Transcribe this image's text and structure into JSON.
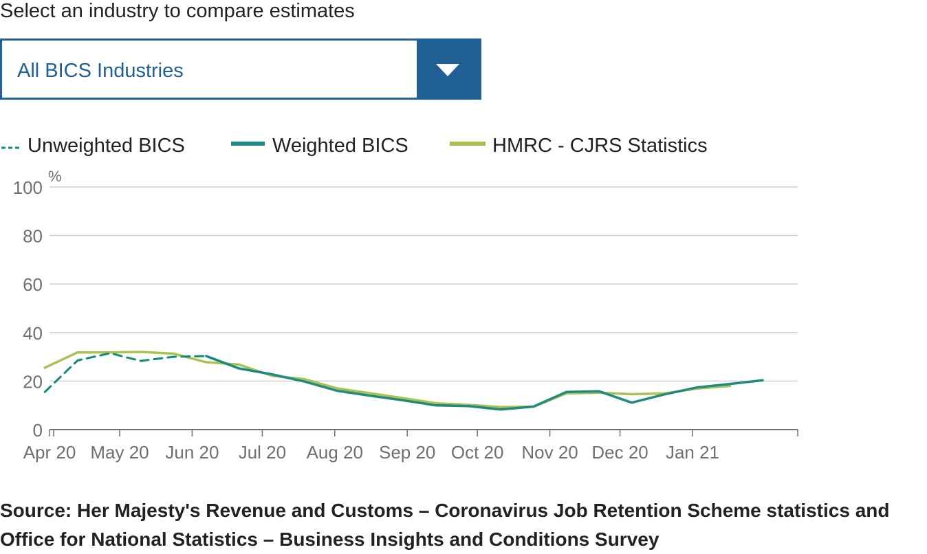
{
  "prompt": "Select an industry to compare estimates",
  "dropdown": {
    "selected": "All BICS Industries",
    "icon": "chevron-down-icon"
  },
  "legend": [
    {
      "name": "Unweighted BICS",
      "style": "dashed",
      "color": "#0f8c79"
    },
    {
      "name": "Weighted BICS",
      "style": "solid",
      "color": "#1f8a82"
    },
    {
      "name": "HMRC - CJRS Statistics",
      "style": "solid",
      "color": "#a8c34f"
    }
  ],
  "chart_data": {
    "type": "line",
    "ylabel": "%",
    "ylim": [
      0,
      100
    ],
    "yticks": [
      0,
      20,
      40,
      60,
      80,
      100
    ],
    "xlim": [
      "2020-04-01",
      "2021-02-15"
    ],
    "xticks": [
      {
        "date": "2020-04-01",
        "label": "Apr 20"
      },
      {
        "date": "2020-05-01",
        "label": "May 20"
      },
      {
        "date": "2020-06-01",
        "label": "Jun 20"
      },
      {
        "date": "2020-07-01",
        "label": "Jul 20"
      },
      {
        "date": "2020-08-01",
        "label": "Aug 20"
      },
      {
        "date": "2020-09-01",
        "label": "Sep 20"
      },
      {
        "date": "2020-10-01",
        "label": "Oct 20"
      },
      {
        "date": "2020-11-01",
        "label": "Nov 20"
      },
      {
        "date": "2020-12-01",
        "label": "Dec 20"
      },
      {
        "date": "2021-01-01",
        "label": "Jan 21"
      }
    ],
    "grid": true,
    "legend_position": "top-left",
    "series": [
      {
        "name": "Unweighted BICS",
        "color": "#0f8c79",
        "dash": true,
        "x": [
          "2020-03-30",
          "2020-04-13",
          "2020-04-27",
          "2020-05-10",
          "2020-05-24",
          "2020-06-07",
          "2020-06-21"
        ],
        "y": [
          15.5,
          28.5,
          31.5,
          28.3,
          30.0,
          30.3,
          25.2
        ]
      },
      {
        "name": "Weighted BICS",
        "color": "#1f8a82",
        "dash": false,
        "x": [
          "2020-06-07",
          "2020-06-21",
          "2020-07-05",
          "2020-07-19",
          "2020-08-02",
          "2020-08-16",
          "2020-08-30",
          "2020-09-13",
          "2020-09-27",
          "2020-10-11",
          "2020-10-25",
          "2020-11-08",
          "2020-11-22",
          "2020-12-06",
          "2020-12-20",
          "2021-01-03",
          "2021-01-17",
          "2021-01-31"
        ],
        "y": [
          30.3,
          25.2,
          22.8,
          19.8,
          16.0,
          14.0,
          12.1,
          10.0,
          9.7,
          8.3,
          9.5,
          15.5,
          15.8,
          11.1,
          14.5,
          17.4,
          18.8,
          20.3
        ]
      },
      {
        "name": "HMRC - CJRS Statistics",
        "color": "#a8c34f",
        "dash": false,
        "x": [
          "2020-03-30",
          "2020-04-13",
          "2020-04-27",
          "2020-05-10",
          "2020-05-24",
          "2020-06-07",
          "2020-06-21",
          "2020-07-05",
          "2020-07-19",
          "2020-08-02",
          "2020-08-16",
          "2020-08-30",
          "2020-09-13",
          "2020-09-27",
          "2020-10-11",
          "2020-10-25",
          "2020-11-08",
          "2020-11-22",
          "2020-12-06",
          "2020-12-20",
          "2021-01-03",
          "2021-01-17"
        ],
        "y": [
          25.5,
          31.8,
          31.8,
          32.0,
          31.3,
          27.8,
          26.8,
          22.2,
          20.8,
          17.0,
          15.0,
          13.0,
          10.9,
          10.2,
          9.3,
          9.4,
          14.9,
          15.2,
          14.6,
          14.9,
          16.9,
          18.0
        ]
      }
    ]
  },
  "source": "Source: Her Majesty's Revenue and Customs – Coronavirus Job Retention Scheme statistics and Office for National Statistics – Business Insights and Conditions Survey"
}
